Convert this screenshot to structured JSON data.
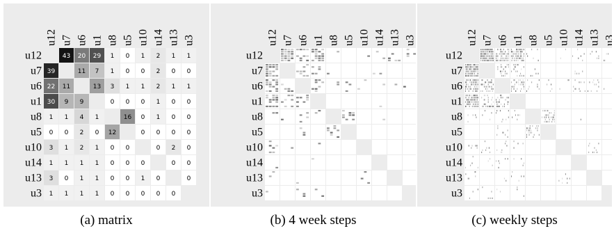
{
  "chart_data": [
    {
      "type": "heatmap",
      "caption": "(a) matrix",
      "row_labels": [
        "u12",
        "u7",
        "u6",
        "u1",
        "u8",
        "u5",
        "u10",
        "u14",
        "u13",
        "u3"
      ],
      "col_labels": [
        "u12",
        "u7",
        "u6",
        "u1",
        "u8",
        "u5",
        "u10",
        "u14",
        "u13",
        "u3"
      ],
      "values": [
        [
          null,
          43,
          20,
          29,
          1,
          0,
          1,
          2,
          1,
          1
        ],
        [
          39,
          null,
          11,
          7,
          1,
          0,
          0,
          2,
          0,
          0
        ],
        [
          22,
          11,
          null,
          13,
          3,
          1,
          1,
          2,
          1,
          1
        ],
        [
          30,
          9,
          9,
          null,
          0,
          0,
          0,
          1,
          0,
          0
        ],
        [
          1,
          1,
          4,
          1,
          null,
          16,
          0,
          1,
          0,
          0
        ],
        [
          0,
          0,
          2,
          0,
          12,
          null,
          0,
          0,
          0,
          0
        ],
        [
          3,
          1,
          2,
          1,
          0,
          0,
          null,
          0,
          2,
          0
        ],
        [
          1,
          1,
          1,
          1,
          0,
          0,
          0,
          null,
          0,
          0
        ],
        [
          3,
          0,
          1,
          1,
          0,
          0,
          1,
          0,
          null,
          0
        ],
        [
          1,
          1,
          1,
          1,
          0,
          0,
          0,
          0,
          0,
          null
        ]
      ],
      "color_max": 43,
      "colors": {
        "low": "#ffffff",
        "high": "#000000",
        "diagonal": "#ececec"
      }
    },
    {
      "type": "heatmap",
      "caption": "(b) 4 week steps",
      "row_labels": [
        "u12",
        "u7",
        "u6",
        "u1",
        "u8",
        "u5",
        "u10",
        "u14",
        "u13",
        "u3"
      ],
      "col_labels": [
        "u12",
        "u7",
        "u6",
        "u1",
        "u8",
        "u5",
        "u10",
        "u14",
        "u13",
        "u3"
      ],
      "steps_per_cell": 4,
      "cell_content": "time-step sparklines, darker = more interaction"
    },
    {
      "type": "heatmap",
      "caption": "(c) weekly steps",
      "row_labels": [
        "u12",
        "u7",
        "u6",
        "u1",
        "u8",
        "u5",
        "u10",
        "u14",
        "u13",
        "u3"
      ],
      "col_labels": [
        "u12",
        "u7",
        "u6",
        "u1",
        "u8",
        "u5",
        "u10",
        "u14",
        "u13",
        "u3"
      ],
      "steps_per_cell": 16,
      "cell_content": "time-step sparklines, darker = more interaction"
    }
  ]
}
